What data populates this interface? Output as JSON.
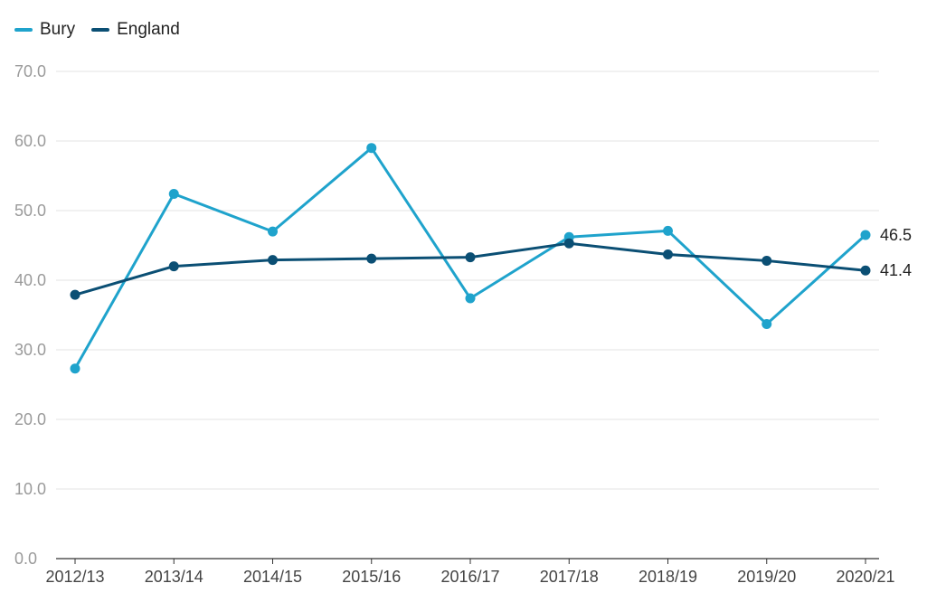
{
  "chart_data": {
    "type": "line",
    "title": "",
    "xlabel": "",
    "ylabel": "",
    "categories": [
      "2012/13",
      "2013/14",
      "2014/15",
      "2015/16",
      "2016/17",
      "2017/18",
      "2018/19",
      "2019/20",
      "2020/21"
    ],
    "ylim": [
      0,
      70
    ],
    "yticks": [
      0,
      10,
      20,
      30,
      40,
      50,
      60,
      70
    ],
    "ytick_labels": [
      "0.0",
      "10.0",
      "20.0",
      "30.0",
      "40.0",
      "50.0",
      "60.0",
      "70.0"
    ],
    "grid": true,
    "legend_position": "top-left",
    "series": [
      {
        "name": "Bury",
        "color": "#1fa3cc",
        "values": [
          27.3,
          52.4,
          47.0,
          59.0,
          37.4,
          46.2,
          47.1,
          33.7,
          46.5
        ],
        "end_label": "46.5"
      },
      {
        "name": "England",
        "color": "#0b4f74",
        "values": [
          37.9,
          42.0,
          42.9,
          43.1,
          43.3,
          45.3,
          43.7,
          42.8,
          41.4
        ],
        "end_label": "41.4"
      }
    ]
  }
}
